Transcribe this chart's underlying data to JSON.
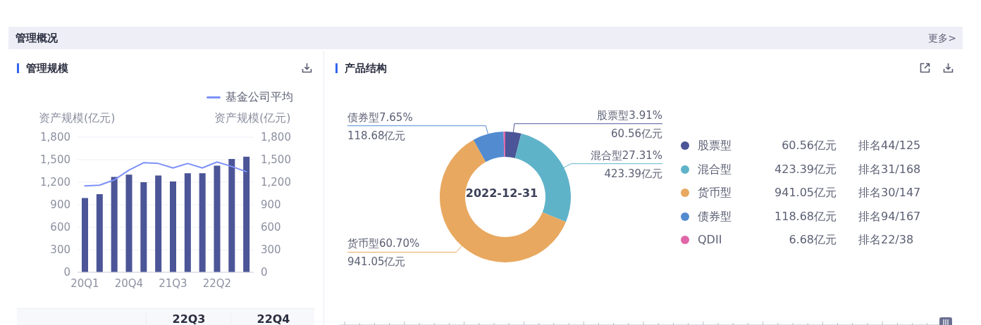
{
  "chart_data": [
    {
      "type": "other",
      "title": "管理概况",
      "annotations": [
        "更多>"
      ]
    },
    {
      "type": "bar",
      "title": "管理规模",
      "categories": [
        "20Q1",
        null,
        null,
        "20Q4",
        null,
        null,
        "21Q3",
        null,
        null,
        "22Q2",
        null,
        null
      ],
      "series": [
        {
          "type": "bar",
          "color": "#4b5597",
          "values": [
            990,
            1040,
            1270,
            1300,
            1200,
            1290,
            1210,
            1320,
            1320,
            1420,
            1510,
            1540
          ]
        },
        {
          "type": "line",
          "name": "基金公司平均",
          "color": "#7d91f7",
          "axis": "y2",
          "values": [
            1150,
            1160,
            1230,
            1360,
            1460,
            1450,
            1390,
            1450,
            1390,
            1470,
            1410,
            1340
          ]
        }
      ],
      "ylabel": "资产规模(亿元)",
      "y2label": "资产规模(亿元)",
      "ylim": [
        0,
        1800
      ],
      "yticks": [
        0,
        300,
        600,
        900,
        {
          "value": 1200,
          "label": "1,200"
        },
        {
          "value": 1500,
          "label": "1,500"
        },
        {
          "value": 1800,
          "label": "1,800"
        }
      ],
      "y2lim": [
        0,
        1800
      ],
      "y2ticks": [
        0,
        300,
        600,
        900,
        {
          "value": 1200,
          "label": "1,200"
        },
        {
          "value": 1500,
          "label": "1,500"
        },
        {
          "value": 1800,
          "label": "1,800"
        }
      ],
      "grid": "y",
      "legend": "top",
      "marker": "none",
      "annotations": [
        "22Q3",
        "22Q4"
      ]
    },
    {
      "type": "donut",
      "title": "产品结构",
      "categories": [
        "股票型",
        "混合型",
        "货币型",
        "债券型",
        "QDII"
      ],
      "values": [
        60.56,
        423.39,
        941.05,
        118.68,
        6.68
      ],
      "colors": [
        "#4b5597",
        "#5fb3c9",
        "#e8a85f",
        "#528bd0",
        "#e066a8"
      ],
      "value_labels": [
        "股票型3.91%\n60.56亿元",
        "混合型27.31%\n423.39亿元",
        "货币型60.70%\n941.05亿元",
        "债券型7.65%\n118.68亿元",
        null
      ],
      "legend": "right",
      "annotations": [
        "2022-12-31",
        "60.56亿元",
        "排名44/125",
        "423.39亿元",
        "排名31/168",
        "941.05亿元",
        "排名30/147",
        "118.68亿元",
        "排名94/167",
        "6.68亿元",
        "排名22/38"
      ]
    }
  ]
}
